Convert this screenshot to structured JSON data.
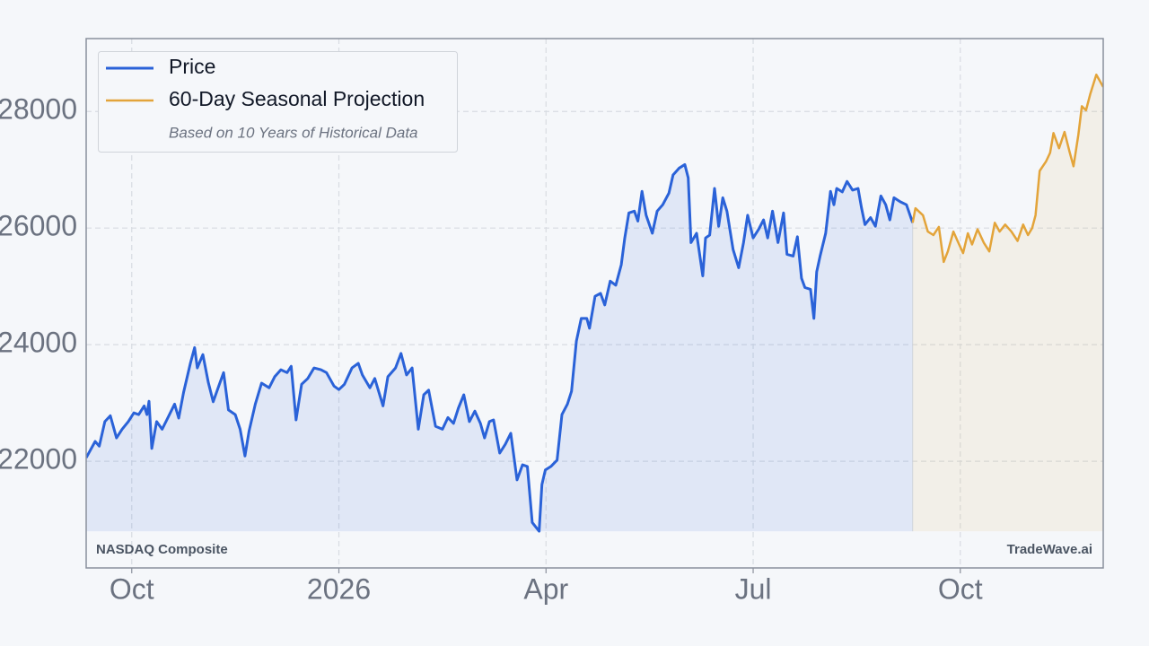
{
  "chart_data": {
    "type": "line",
    "xlim": [
      -0.66,
      14.07
    ],
    "ylim": [
      20170,
      29250
    ],
    "xticks": [
      {
        "value": 0,
        "label": "Oct"
      },
      {
        "value": 3,
        "label": "2026"
      },
      {
        "value": 6,
        "label": "Apr"
      },
      {
        "value": 9,
        "label": "Jul"
      },
      {
        "value": 12,
        "label": "Oct"
      }
    ],
    "yticks": [
      22000,
      24000,
      26000,
      28000
    ],
    "grid": true,
    "legend": "upper left",
    "note": "Based on 10 Years of Historical Data",
    "source_left": "NASDAQ Composite",
    "source_right": "TradeWave.ai",
    "series": [
      {
        "name": "Price",
        "color": "#2a62d8",
        "x": [
          -0.66,
          -0.53,
          -0.47,
          -0.39,
          -0.31,
          -0.22,
          -0.14,
          -0.05,
          0.03,
          0.1,
          0.18,
          0.22,
          0.25,
          0.29,
          0.36,
          0.44,
          0.52,
          0.62,
          0.68,
          0.75,
          0.85,
          0.91,
          0.95,
          1.03,
          1.11,
          1.18,
          1.26,
          1.33,
          1.4,
          1.5,
          1.57,
          1.64,
          1.7,
          1.79,
          1.88,
          1.99,
          2.07,
          2.16,
          2.25,
          2.31,
          2.38,
          2.46,
          2.55,
          2.64,
          2.74,
          2.82,
          2.93,
          3.0,
          3.08,
          3.19,
          3.28,
          3.34,
          3.45,
          3.52,
          3.64,
          3.71,
          3.82,
          3.9,
          3.98,
          4.06,
          4.15,
          4.23,
          4.3,
          4.4,
          4.5,
          4.58,
          4.66,
          4.73,
          4.81,
          4.89,
          4.97,
          5.05,
          5.11,
          5.18,
          5.24,
          5.33,
          5.41,
          5.49,
          5.58,
          5.66,
          5.73,
          5.8,
          5.9,
          5.94,
          5.99,
          6.07,
          6.16,
          6.23,
          6.31,
          6.37,
          6.44,
          6.51,
          6.59,
          6.63,
          6.71,
          6.79,
          6.85,
          6.93,
          7.01,
          7.09,
          7.14,
          7.2,
          7.28,
          7.33,
          7.39,
          7.45,
          7.54,
          7.61,
          7.69,
          7.78,
          7.84,
          7.93,
          8.01,
          8.06,
          8.1,
          8.18,
          8.27,
          8.31,
          8.37,
          8.44,
          8.5,
          8.56,
          8.62,
          8.71,
          8.79,
          8.86,
          8.92,
          9.0,
          9.08,
          9.15,
          9.21,
          9.28,
          9.36,
          9.44,
          9.49,
          9.58,
          9.64,
          9.7,
          9.75,
          9.83,
          9.88,
          9.92,
          9.97,
          10.05,
          10.12,
          10.17,
          10.21,
          10.29,
          10.36,
          10.44,
          10.52,
          10.57,
          10.62,
          10.7,
          10.77,
          10.85,
          10.92,
          10.98,
          11.04,
          11.13,
          11.22,
          11.31
        ],
        "values": [
          22060,
          22340,
          22260,
          22680,
          22780,
          22400,
          22550,
          22680,
          22830,
          22800,
          22950,
          22800,
          23030,
          22220,
          22680,
          22550,
          22740,
          22980,
          22740,
          23180,
          23680,
          23950,
          23600,
          23830,
          23350,
          23020,
          23290,
          23520,
          22880,
          22800,
          22550,
          22090,
          22520,
          22980,
          23340,
          23260,
          23450,
          23570,
          23520,
          23630,
          22710,
          23320,
          23420,
          23600,
          23570,
          23520,
          23290,
          23230,
          23320,
          23600,
          23680,
          23480,
          23260,
          23420,
          22950,
          23450,
          23600,
          23850,
          23480,
          23600,
          22550,
          23140,
          23220,
          22600,
          22550,
          22750,
          22650,
          22910,
          23140,
          22680,
          22860,
          22650,
          22400,
          22680,
          22710,
          22140,
          22290,
          22480,
          21680,
          21940,
          21910,
          20950,
          20800,
          21600,
          21850,
          21910,
          22020,
          22800,
          22980,
          23200,
          24060,
          24450,
          24450,
          24280,
          24830,
          24880,
          24680,
          25090,
          25020,
          25370,
          25830,
          26260,
          26290,
          26120,
          26630,
          26220,
          25910,
          26290,
          26400,
          26600,
          26910,
          27030,
          27090,
          26860,
          25750,
          25910,
          25180,
          25830,
          25880,
          26680,
          26030,
          26520,
          26290,
          25630,
          25320,
          25750,
          26220,
          25830,
          25980,
          26140,
          25830,
          26290,
          25750,
          26260,
          25550,
          25520,
          25850,
          25140,
          24980,
          24950,
          24450,
          25250,
          25520,
          25910,
          26630,
          26400,
          26680,
          26620,
          26800,
          26650,
          26680,
          26340,
          26060,
          26180,
          26030,
          26550,
          26400,
          26140,
          26520,
          26450,
          26400,
          26090
        ]
      },
      {
        "name": "60-Day Seasonal Projection",
        "color": "#e3a43a",
        "x": [
          11.31,
          11.35,
          11.46,
          11.53,
          11.61,
          11.69,
          11.76,
          11.82,
          11.9,
          11.96,
          12.04,
          12.11,
          12.17,
          12.25,
          12.34,
          12.42,
          12.5,
          12.57,
          12.65,
          12.74,
          12.83,
          12.91,
          12.98,
          13.04,
          13.09,
          13.15,
          13.24,
          13.3,
          13.35,
          13.43,
          13.51,
          13.58,
          13.64,
          13.71,
          13.76,
          13.82,
          13.88,
          13.97,
          14.07
        ],
        "values": [
          26090,
          26340,
          26220,
          25940,
          25880,
          26020,
          25420,
          25600,
          25940,
          25780,
          25570,
          25910,
          25720,
          25980,
          25750,
          25600,
          26090,
          25940,
          26060,
          25940,
          25780,
          26060,
          25880,
          26000,
          26220,
          26980,
          27140,
          27290,
          27630,
          27370,
          27650,
          27320,
          27060,
          27600,
          28090,
          28020,
          28290,
          28630,
          28420
        ]
      }
    ]
  }
}
